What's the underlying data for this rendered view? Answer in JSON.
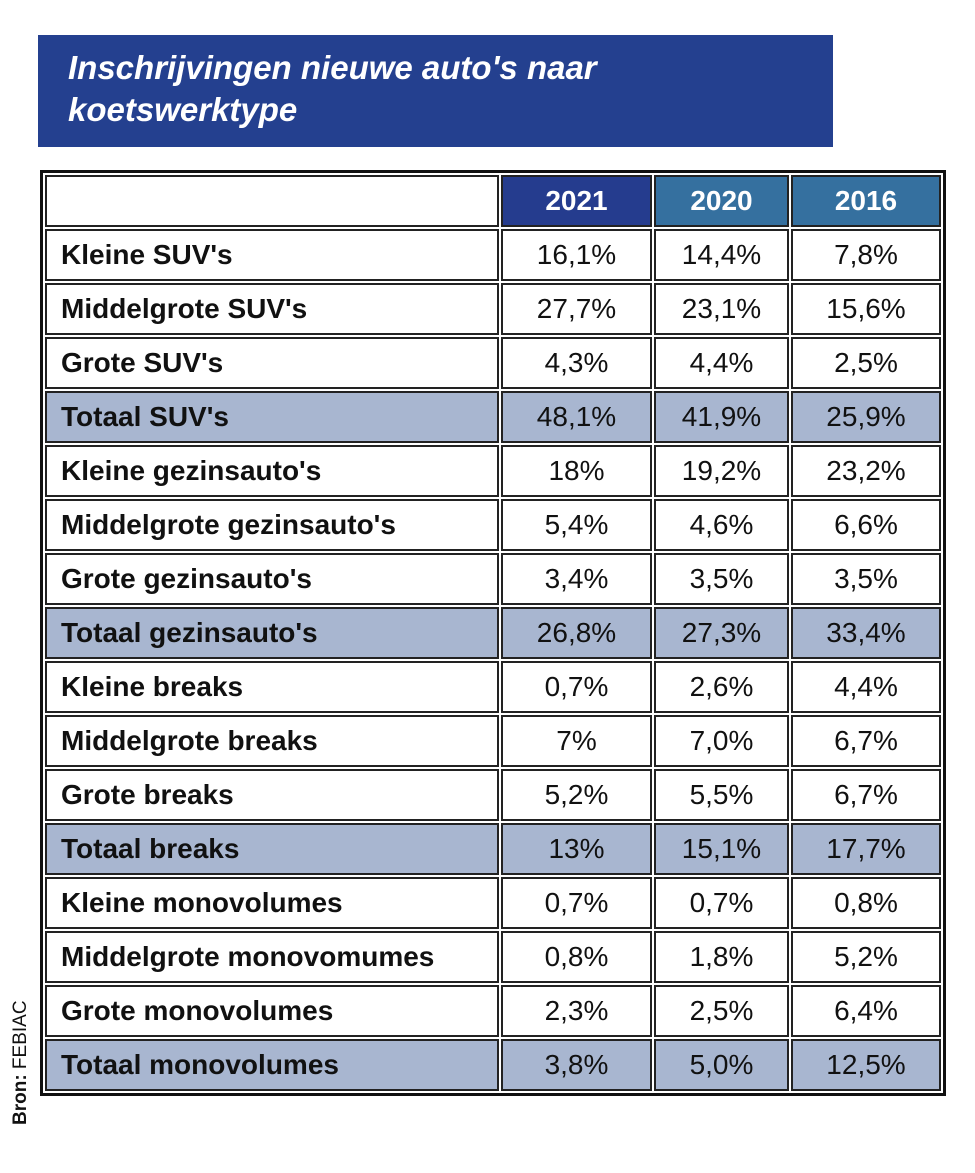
{
  "header": {
    "title": "Inschrijvingen nieuwe auto's naar koetswerktype"
  },
  "table": {
    "years": [
      "2021",
      "2020",
      "2016"
    ],
    "rows": [
      {
        "label": "Kleine SUV's",
        "values": [
          "16,1%",
          "14,4%",
          "7,8%"
        ],
        "total": false
      },
      {
        "label": "Middelgrote SUV's",
        "values": [
          "27,7%",
          "23,1%",
          "15,6%"
        ],
        "total": false
      },
      {
        "label": "Grote SUV's",
        "values": [
          "4,3%",
          "4,4%",
          "2,5%"
        ],
        "total": false
      },
      {
        "label": "Totaal SUV's",
        "values": [
          "48,1%",
          "41,9%",
          "25,9%"
        ],
        "total": true
      },
      {
        "label": "Kleine gezinsauto's",
        "values": [
          "18%",
          "19,2%",
          "23,2%"
        ],
        "total": false
      },
      {
        "label": "Middelgrote gezinsauto's",
        "values": [
          "5,4%",
          "4,6%",
          "6,6%"
        ],
        "total": false
      },
      {
        "label": "Grote gezinsauto's",
        "values": [
          "3,4%",
          "3,5%",
          "3,5%"
        ],
        "total": false
      },
      {
        "label": "Totaal gezinsauto's",
        "values": [
          "26,8%",
          "27,3%",
          "33,4%"
        ],
        "total": true
      },
      {
        "label": "Kleine breaks",
        "values": [
          "0,7%",
          "2,6%",
          "4,4%"
        ],
        "total": false
      },
      {
        "label": "Middelgrote breaks",
        "values": [
          "7%",
          "7,0%",
          "6,7%"
        ],
        "total": false
      },
      {
        "label": "Grote breaks",
        "values": [
          "5,2%",
          "5,5%",
          "6,7%"
        ],
        "total": false
      },
      {
        "label": "Totaal breaks",
        "values": [
          "13%",
          "15,1%",
          "17,7%"
        ],
        "total": true
      },
      {
        "label": "Kleine monovolumes",
        "values": [
          "0,7%",
          "0,7%",
          "0,8%"
        ],
        "total": false
      },
      {
        "label": "Middelgrote monovomumes",
        "values": [
          "0,8%",
          "1,8%",
          "5,2%"
        ],
        "total": false
      },
      {
        "label": "Grote monovolumes",
        "values": [
          "2,3%",
          "2,5%",
          "6,4%"
        ],
        "total": false
      },
      {
        "label": "Totaal monovolumes",
        "values": [
          "3,8%",
          "5,0%",
          "12,5%"
        ],
        "total": true
      }
    ]
  },
  "source": {
    "label": "Bron:",
    "text": "FEBIAC"
  }
}
